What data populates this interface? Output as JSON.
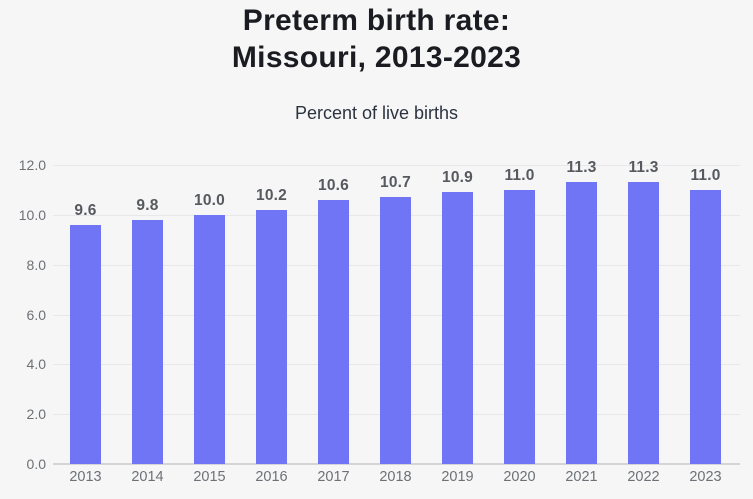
{
  "header": {
    "title_line1": "Preterm birth rate:",
    "title_line2": "Missouri, 2013-2023",
    "subtitle": "Percent of live births"
  },
  "chart_data": {
    "type": "bar",
    "title": "Preterm birth rate: Missouri, 2013-2023",
    "subtitle": "Percent of live births",
    "categories": [
      "2013",
      "2014",
      "2015",
      "2016",
      "2017",
      "2018",
      "2019",
      "2020",
      "2021",
      "2022",
      "2023"
    ],
    "values": [
      9.6,
      9.8,
      10.0,
      10.2,
      10.6,
      10.7,
      10.9,
      11.0,
      11.3,
      11.3,
      11.0
    ],
    "bar_labels": [
      "9.6",
      "9.8",
      "10.0",
      "10.2",
      "10.6",
      "10.7",
      "10.9",
      "11.0",
      "11.3",
      "11.3",
      "11.0"
    ],
    "xlabel": "",
    "ylabel": "Percent of live births",
    "ylim": [
      0,
      12
    ],
    "y_ticks": [
      "12.0",
      "10.0",
      "8.0",
      "6.0",
      "4.0",
      "2.0",
      "0.0"
    ],
    "grid": true,
    "legend": false,
    "colors": {
      "bar": "#6f75f5",
      "bar_label": "#56595e",
      "axis_label": "#6d7175",
      "gridline": "#e8e8ea",
      "baseline": "#d4d5d8",
      "title": "#1b1c21",
      "subtitle": "#2b3340",
      "background": "#f6f6f7"
    }
  }
}
